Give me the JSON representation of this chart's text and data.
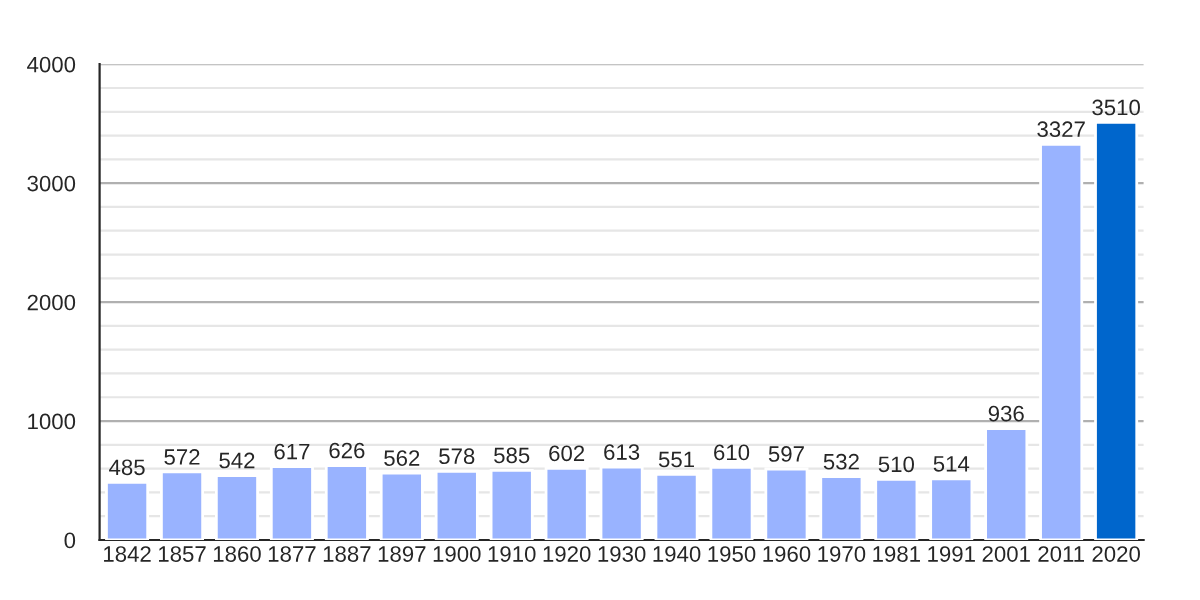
{
  "chart_data": {
    "type": "bar",
    "categories": [
      "1842",
      "1857",
      "1860",
      "1877",
      "1887",
      "1897",
      "1900",
      "1910",
      "1920",
      "1930",
      "1940",
      "1950",
      "1960",
      "1970",
      "1981",
      "1991",
      "2001",
      "2011",
      "2020"
    ],
    "values": [
      485,
      572,
      542,
      617,
      626,
      562,
      578,
      585,
      602,
      613,
      551,
      610,
      597,
      532,
      510,
      514,
      936,
      3327,
      3510
    ],
    "colors": [
      "#99b3ff",
      "#99b3ff",
      "#99b3ff",
      "#99b3ff",
      "#99b3ff",
      "#99b3ff",
      "#99b3ff",
      "#99b3ff",
      "#99b3ff",
      "#99b3ff",
      "#99b3ff",
      "#99b3ff",
      "#99b3ff",
      "#99b3ff",
      "#99b3ff",
      "#99b3ff",
      "#99b3ff",
      "#99b3ff",
      "#0066cc"
    ],
    "ylim": [
      0,
      4000
    ],
    "yticks": [
      0,
      1000,
      2000,
      3000,
      4000
    ],
    "grid": "y",
    "data_labels": true
  }
}
